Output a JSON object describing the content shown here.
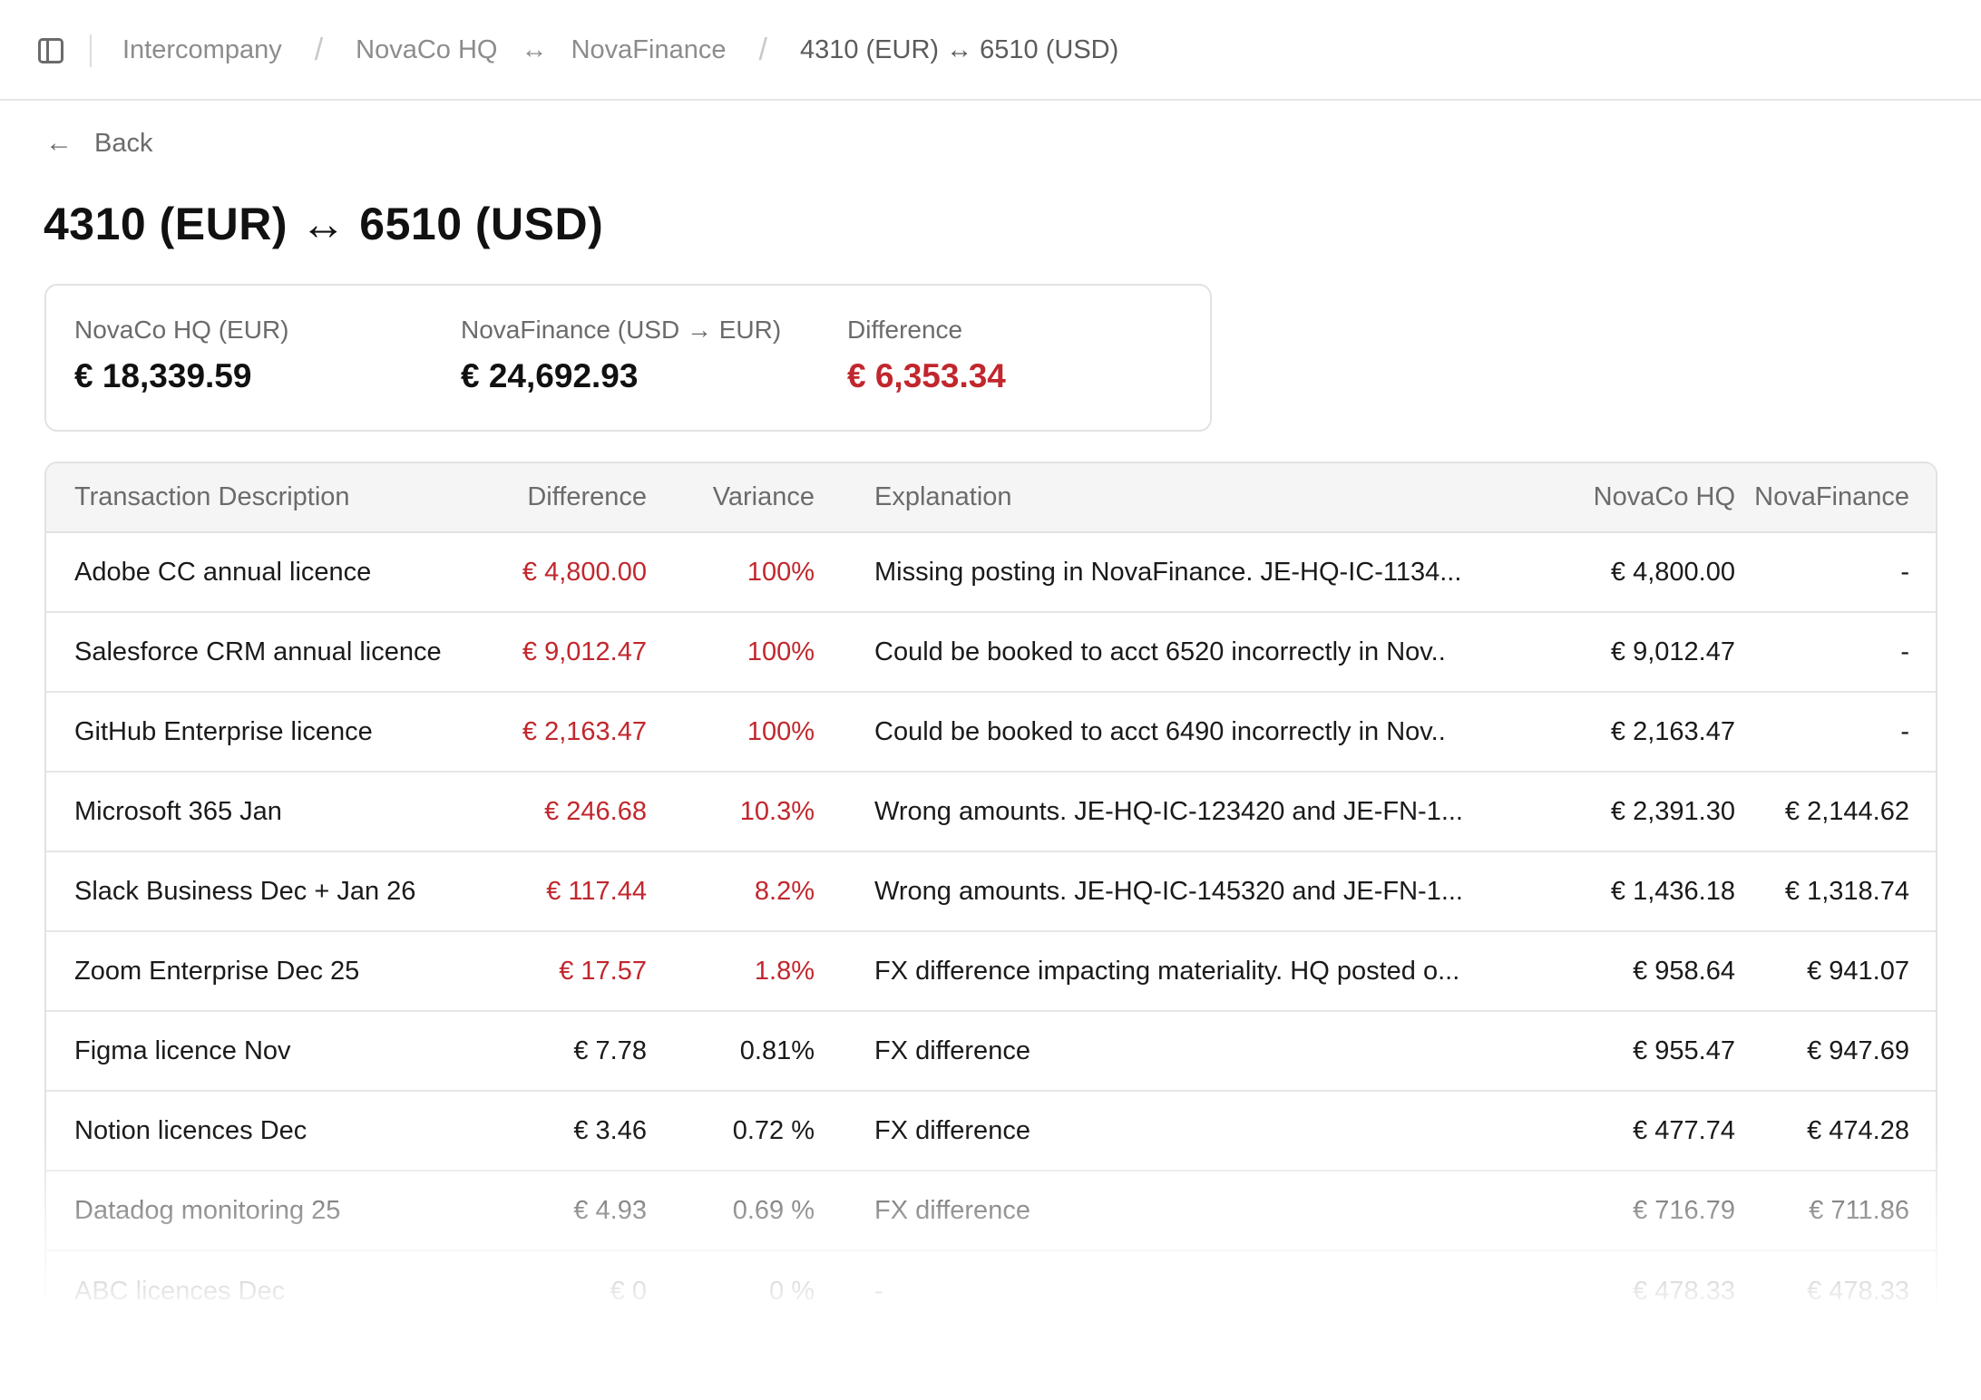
{
  "breadcrumb": {
    "root": "Intercompany",
    "pair_left": "NovaCo HQ",
    "pair_arrow": "↔",
    "pair_right": "NovaFinance",
    "current": "4310 (EUR) ↔ 6510 (USD)"
  },
  "back_label": "Back",
  "page_title": "4310 (EUR) ↔ 6510 (USD)",
  "summary": {
    "hq_label": "NovaCo HQ (EUR)",
    "hq_value": "€ 18,339.59",
    "fin_label": "NovaFinance (USD → EUR)",
    "fin_value": "€ 24,692.93",
    "diff_label": "Difference",
    "diff_value": "€ 6,353.34"
  },
  "table": {
    "columns": [
      "Transaction Description",
      "Difference",
      "Variance",
      "Explanation",
      "NovaCo HQ",
      "NovaFinance"
    ],
    "rows": [
      {
        "desc": "Adobe CC annual licence",
        "diff": "€ 4,800.00",
        "variance": "100%",
        "explanation": "Missing posting in NovaFinance. JE-HQ-IC-1134...",
        "hq": "€ 4,800.00",
        "fin": "-",
        "flag": "red"
      },
      {
        "desc": "Salesforce CRM annual licence",
        "diff": "€ 9,012.47",
        "variance": "100%",
        "explanation": "Could be booked to acct 6520 incorrectly in Nov..",
        "hq": "€ 9,012.47",
        "fin": "-",
        "flag": "red"
      },
      {
        "desc": "GitHub Enterprise licence",
        "diff": "€ 2,163.47",
        "variance": "100%",
        "explanation": "Could be booked to acct 6490 incorrectly in Nov..",
        "hq": "€ 2,163.47",
        "fin": "-",
        "flag": "red"
      },
      {
        "desc": "Microsoft 365 Jan",
        "diff": "€ 246.68",
        "variance": "10.3%",
        "explanation": "Wrong amounts. JE-HQ-IC-123420 and JE-FN-1...",
        "hq": "€ 2,391.30",
        "fin": "€ 2,144.62",
        "flag": "red"
      },
      {
        "desc": "Slack Business Dec + Jan 26",
        "diff": "€ 117.44",
        "variance": "8.2%",
        "explanation": "Wrong amounts. JE-HQ-IC-145320 and JE-FN-1...",
        "hq": "€ 1,436.18",
        "fin": "€ 1,318.74",
        "flag": "red"
      },
      {
        "desc": "Zoom Enterprise Dec 25",
        "diff": "€ 17.57",
        "variance": "1.8%",
        "explanation": "FX difference impacting materiality. HQ posted o...",
        "hq": "€ 958.64",
        "fin": "€ 941.07",
        "flag": "red"
      },
      {
        "desc": "Figma licence Nov",
        "diff": "€ 7.78",
        "variance": "0.81%",
        "explanation": "FX difference",
        "hq": "€ 955.47",
        "fin": "€ 947.69",
        "flag": "normal"
      },
      {
        "desc": "Notion licences Dec",
        "diff": "€ 3.46",
        "variance": "0.72 %",
        "explanation": "FX difference",
        "hq": "€ 477.74",
        "fin": "€ 474.28",
        "flag": "normal"
      },
      {
        "desc": "Datadog monitoring 25",
        "diff": "€ 4.93",
        "variance": "0.69 %",
        "explanation": "FX difference",
        "hq": "€ 716.79",
        "fin": "€ 711.86",
        "flag": "normal"
      },
      {
        "desc": "ABC licences Dec",
        "diff": "€ 0",
        "variance": "0 %",
        "explanation": "-",
        "hq": "€ 478.33",
        "fin": "€ 478.33",
        "flag": "normal"
      }
    ]
  },
  "colors": {
    "accent_red": "#c1272d",
    "header_bg": "#f5f5f5",
    "border": "#e2e2e2"
  }
}
